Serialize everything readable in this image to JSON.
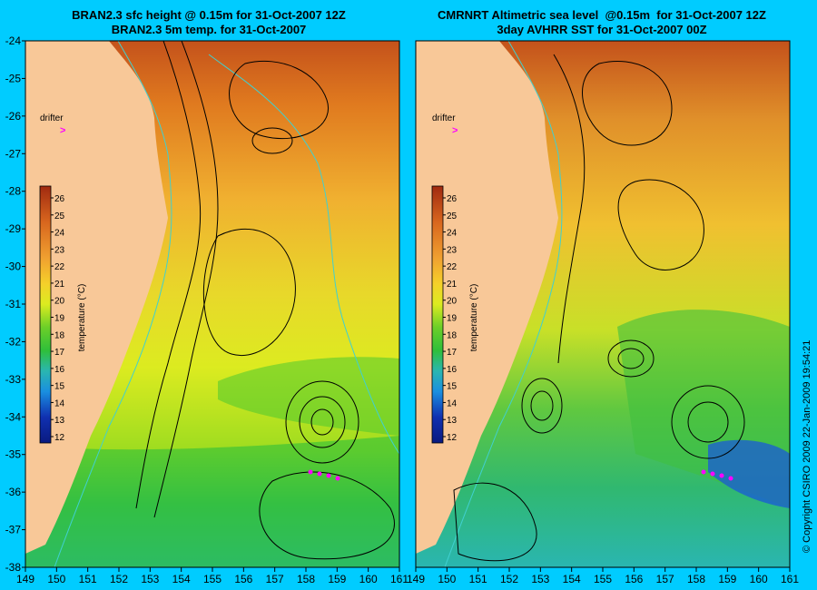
{
  "titles": {
    "left_line1": "BRAN2.3 sfc height @ 0.15m for 31-Oct-2007 12Z",
    "left_line2": "BRAN2.3 5m temp. for 31-Oct-2007",
    "right_line1": "CMRNRT Altimetric sea level  @0.15m  for 31-Oct-2007 12Z",
    "right_line2": "3day AVHRR SST for 31-Oct-2007 00Z"
  },
  "axes": {
    "lat_labels": [
      "-24",
      "-25",
      "-26",
      "-27",
      "-28",
      "-29",
      "-30",
      "-31",
      "-32",
      "-33",
      "-34",
      "-35",
      "-36",
      "-37",
      "-38"
    ],
    "lon_labels_left": [
      "149",
      "150",
      "151",
      "152",
      "153",
      "154",
      "155",
      "156",
      "157",
      "158",
      "159",
      "160",
      "161"
    ],
    "lon_labels_right": [
      "149",
      "150",
      "151",
      "152",
      "153",
      "154",
      "155",
      "156",
      "157",
      "158",
      "159",
      "160",
      "161"
    ]
  },
  "drifter_label": "drifter",
  "drifter_marker": ">",
  "colorbar": {
    "ticks": [
      "26",
      "25",
      "24",
      "23",
      "22",
      "21",
      "20",
      "19",
      "18",
      "17",
      "16",
      "15",
      "14",
      "13",
      "12"
    ],
    "label": "temperature (°C)",
    "colors": [
      "#a02a10",
      "#c4521b",
      "#e07a1f",
      "#f0a030",
      "#f5d02a",
      "#dceb20",
      "#a8df20",
      "#6ccf28",
      "#2fbf3a",
      "#2ab078",
      "#2ab6b0",
      "#1a8fe0",
      "#1a5ad8",
      "#1030b0",
      "#0a1a80"
    ]
  },
  "colors": {
    "background": "#00ccff",
    "land": "#f8c898",
    "contour": "#000000",
    "isobath": "#40d0d0",
    "drifter": "#ff00ff"
  },
  "copyright": "© Copyright CSIRO 2009    22-Jan-2009 19:54:21"
}
